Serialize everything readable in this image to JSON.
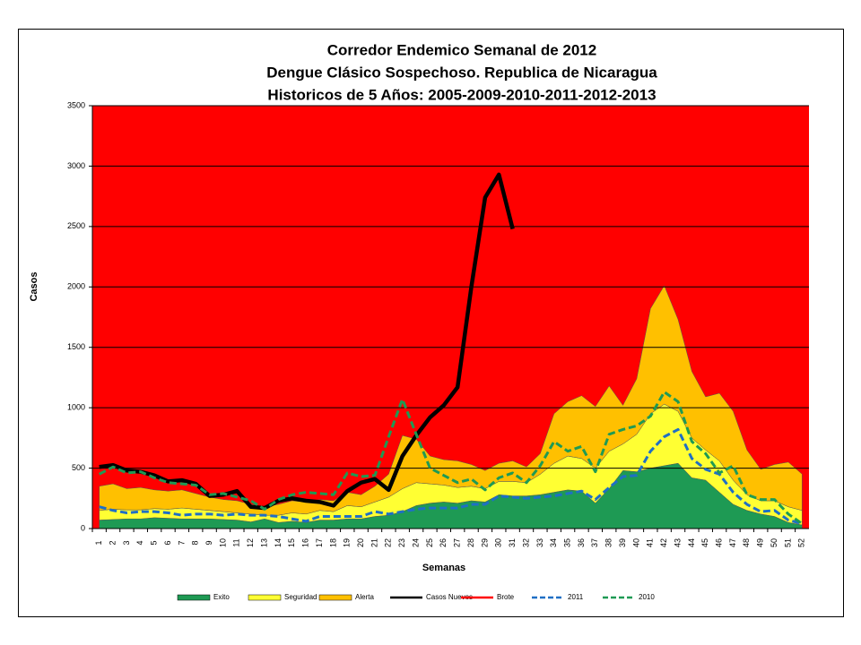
{
  "chart_data": {
    "type": "area",
    "title": [
      "Corredor Endemico Semanal de 2012",
      "Dengue Clásico Sospechoso. Republica de Nicaragua",
      "Historicos de 5 Años: 2005-2009-2010-2011-2012-2013"
    ],
    "x_label": "Semanas",
    "y_label": "Casos",
    "categories": [
      "1",
      "2",
      "3",
      "4",
      "5",
      "6",
      "7",
      "8",
      "9",
      "10",
      "11",
      "12",
      "13",
      "14",
      "15",
      "16",
      "17",
      "18",
      "19",
      "20",
      "21",
      "22",
      "23",
      "24",
      "25",
      "26",
      "27",
      "28",
      "29",
      "30",
      "31",
      "32",
      "33",
      "34",
      "35",
      "36",
      "37",
      "38",
      "39",
      "40",
      "41",
      "42",
      "43",
      "44",
      "45",
      "46",
      "47",
      "48",
      "49",
      "50",
      "51",
      "52"
    ],
    "ylim": [
      0,
      3500
    ],
    "yticks": [
      0,
      500,
      1000,
      1500,
      2000,
      2500,
      3000,
      3500
    ],
    "grid": true,
    "stacked_series": [
      {
        "name": "Exito",
        "color": "#1e9a54",
        "values": [
          70,
          75,
          80,
          80,
          90,
          85,
          80,
          80,
          80,
          75,
          70,
          55,
          80,
          50,
          60,
          50,
          70,
          70,
          80,
          80,
          100,
          110,
          140,
          190,
          210,
          220,
          210,
          230,
          220,
          280,
          270,
          270,
          280,
          300,
          320,
          310,
          210,
          330,
          480,
          470,
          500,
          520,
          540,
          420,
          400,
          300,
          200,
          150,
          120,
          100,
          50,
          30
        ]
      },
      {
        "name": "Seguridad",
        "color": "#ffff33",
        "values": [
          80,
          85,
          75,
          75,
          75,
          75,
          90,
          80,
          70,
          65,
          60,
          65,
          30,
          60,
          70,
          70,
          80,
          70,
          110,
          100,
          120,
          150,
          190,
          190,
          160,
          140,
          130,
          120,
          110,
          110,
          120,
          110,
          170,
          240,
          280,
          270,
          290,
          310,
          220,
          310,
          450,
          510,
          430,
          330,
          250,
          260,
          200,
          130,
          110,
          130,
          130,
          120
        ]
      },
      {
        "name": "Alerta",
        "color": "#ffc000",
        "values": [
          200,
          210,
          175,
          185,
          155,
          150,
          150,
          130,
          110,
          100,
          100,
          80,
          70,
          90,
          100,
          100,
          90,
          90,
          110,
          100,
          130,
          190,
          440,
          360,
          230,
          210,
          220,
          180,
          150,
          150,
          170,
          130,
          170,
          410,
          450,
          520,
          510,
          540,
          320,
          460,
          870,
          980,
          760,
          550,
          440,
          560,
          570,
          370,
          260,
          300,
          370,
          300
        ]
      }
    ],
    "line_series": [
      {
        "name": "Casos Nuevos",
        "color": "#000000",
        "dashed": false,
        "values": [
          510,
          525,
          480,
          470,
          440,
          390,
          400,
          370,
          270,
          280,
          310,
          180,
          170,
          230,
          250,
          230,
          220,
          190,
          310,
          380,
          410,
          320,
          600,
          770,
          920,
          1020,
          1170,
          2000,
          2740,
          2930,
          2480,
          null,
          null,
          null,
          null,
          null,
          null,
          null,
          null,
          null,
          null,
          null,
          null,
          null,
          null,
          null,
          null,
          null,
          null,
          null,
          null,
          null
        ]
      },
      {
        "name": "Brote",
        "color": "#ff0000",
        "background": true
      },
      {
        "name": "2011",
        "color": "#1f6fc5",
        "dashed": true,
        "values": [
          180,
          150,
          130,
          140,
          140,
          130,
          110,
          120,
          120,
          110,
          120,
          110,
          110,
          100,
          80,
          60,
          100,
          100,
          100,
          100,
          140,
          120,
          140,
          160,
          170,
          170,
          170,
          200,
          200,
          270,
          260,
          250,
          260,
          270,
          290,
          310,
          240,
          340,
          430,
          440,
          640,
          760,
          820,
          580,
          490,
          450,
          300,
          200,
          140,
          150,
          70,
          40
        ]
      },
      {
        "name": "2010",
        "color": "#1e9a54",
        "dashed": true,
        "values": [
          450,
          510,
          460,
          470,
          420,
          380,
          370,
          360,
          280,
          290,
          260,
          230,
          160,
          240,
          280,
          300,
          290,
          280,
          460,
          430,
          440,
          760,
          1070,
          780,
          500,
          440,
          380,
          410,
          320,
          420,
          460,
          380,
          520,
          720,
          640,
          680,
          470,
          780,
          820,
          850,
          930,
          1130,
          1050,
          720,
          620,
          460,
          520,
          280,
          240,
          240,
          120,
          40
        ]
      }
    ]
  }
}
